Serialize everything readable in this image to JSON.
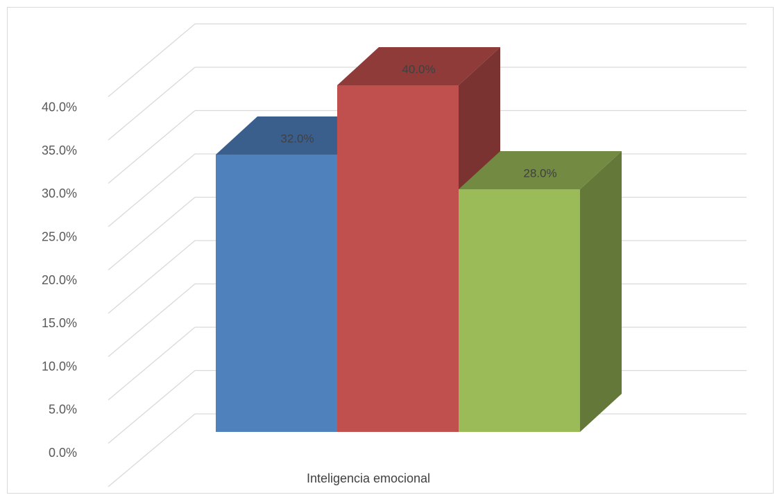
{
  "chart_data": {
    "type": "bar",
    "style": "3d-clustered-column",
    "categories": [
      "Inteligencia emocional"
    ],
    "series": [
      {
        "values": [
          32.0
        ],
        "color": "#4f81bd"
      },
      {
        "values": [
          40.0
        ],
        "color": "#c0504d"
      },
      {
        "values": [
          28.0
        ],
        "color": "#9bbb59"
      }
    ],
    "data_labels": [
      "32.0%",
      "40.0%",
      "28.0%"
    ],
    "y_ticks": [
      "0.0%",
      "5.0%",
      "10.0%",
      "15.0%",
      "20.0%",
      "25.0%",
      "30.0%",
      "35.0%",
      "40.0%"
    ],
    "ylim": [
      0,
      40
    ],
    "grid": true,
    "legend": "none",
    "title": "",
    "xlabel": "",
    "ylabel": ""
  }
}
